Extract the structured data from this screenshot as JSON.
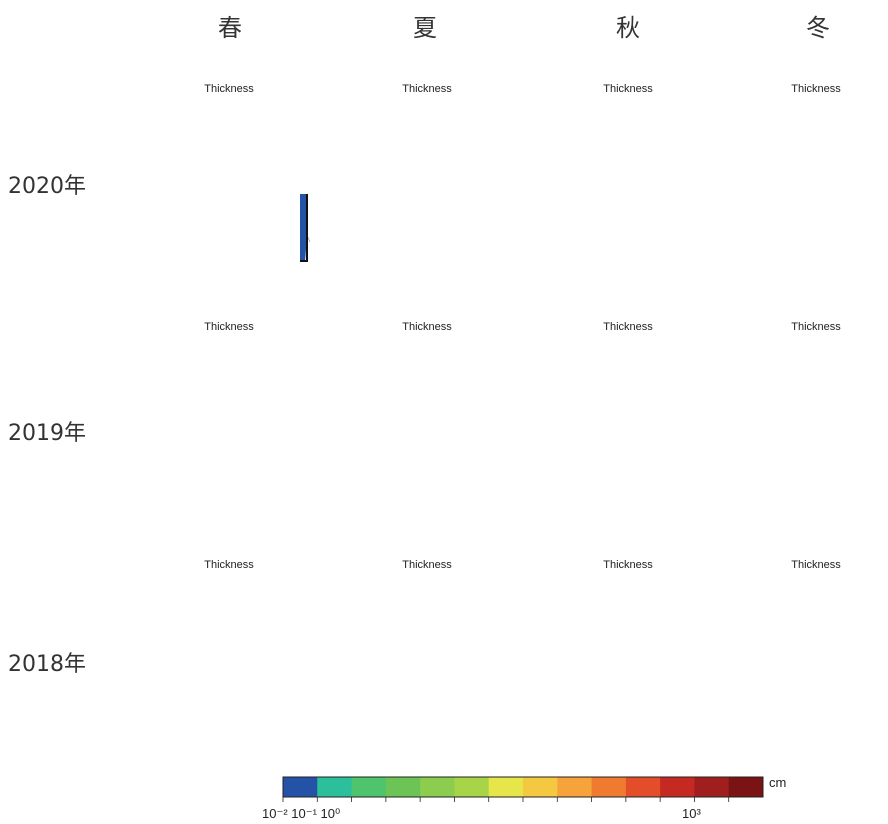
{
  "columns": [
    "春",
    "夏",
    "秋",
    "冬"
  ],
  "rows": [
    "2020年",
    "2019年",
    "2018年"
  ],
  "panels": [
    [
      "Thickness",
      "Thickness",
      "Thickness",
      "Thickness"
    ],
    [
      "Thickness",
      "Thickness",
      "Thickness",
      "Thickness"
    ],
    [
      "Thickness",
      "Thickness",
      "Thickness",
      "Thickness"
    ]
  ],
  "colorbar": {
    "colors": [
      "#2452a6",
      "#2bbf9c",
      "#4ec46c",
      "#6cc456",
      "#8ccc4e",
      "#a8d447",
      "#e6e64a",
      "#f5c842",
      "#f5a33a",
      "#f07b30",
      "#e34d2a",
      "#c42a22",
      "#a01e1e",
      "#7a1414"
    ],
    "unit": "cm",
    "left_labels": "10⁻² 10⁻¹ 10⁰",
    "right_label": "10³"
  }
}
